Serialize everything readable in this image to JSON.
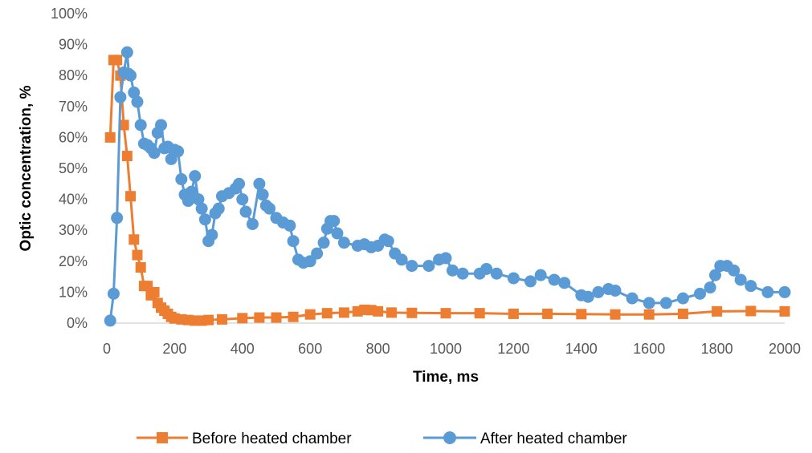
{
  "chart_data": {
    "type": "line",
    "xlabel": "Time, ms",
    "ylabel": "Optic concentration, %",
    "xlim": [
      0,
      2000
    ],
    "ylim": [
      0,
      100
    ],
    "x_ticks": [
      "0",
      "200",
      "400",
      "600",
      "800",
      "1000",
      "1200",
      "1400",
      "1600",
      "1800",
      "2000"
    ],
    "y_ticks": [
      "0%",
      "10%",
      "20%",
      "30%",
      "40%",
      "50%",
      "60%",
      "70%",
      "80%",
      "90%",
      "100%"
    ],
    "grid": false,
    "legend_position": "bottom",
    "series": [
      {
        "name": "Before heated chamber",
        "color": "#ED7D31",
        "marker": "square",
        "points": [
          [
            10,
            60
          ],
          [
            20,
            85
          ],
          [
            30,
            85
          ],
          [
            40,
            80
          ],
          [
            50,
            64
          ],
          [
            60,
            54
          ],
          [
            70,
            41
          ],
          [
            80,
            27
          ],
          [
            90,
            22
          ],
          [
            100,
            18
          ],
          [
            110,
            12
          ],
          [
            120,
            12
          ],
          [
            130,
            9
          ],
          [
            140,
            10
          ],
          [
            150,
            6.5
          ],
          [
            160,
            5
          ],
          [
            170,
            4
          ],
          [
            180,
            3
          ],
          [
            190,
            2
          ],
          [
            200,
            1.5
          ],
          [
            220,
            1.2
          ],
          [
            240,
            1.0
          ],
          [
            260,
            0.8
          ],
          [
            280,
            0.8
          ],
          [
            300,
            1.0
          ],
          [
            340,
            1.2
          ],
          [
            400,
            1.6
          ],
          [
            450,
            1.8
          ],
          [
            500,
            1.8
          ],
          [
            550,
            2.0
          ],
          [
            600,
            2.8
          ],
          [
            650,
            3.2
          ],
          [
            700,
            3.4
          ],
          [
            740,
            3.8
          ],
          [
            760,
            4.3
          ],
          [
            780,
            4.2
          ],
          [
            800,
            3.8
          ],
          [
            840,
            3.4
          ],
          [
            900,
            3.3
          ],
          [
            1000,
            3.2
          ],
          [
            1100,
            3.2
          ],
          [
            1200,
            3.0
          ],
          [
            1300,
            3.0
          ],
          [
            1400,
            2.9
          ],
          [
            1500,
            2.8
          ],
          [
            1600,
            2.8
          ],
          [
            1700,
            3.0
          ],
          [
            1800,
            3.8
          ],
          [
            1900,
            3.9
          ],
          [
            2000,
            3.8
          ]
        ]
      },
      {
        "name": "After heated chamber",
        "color": "#5B9BD5",
        "marker": "circle",
        "points": [
          [
            10,
            0.8
          ],
          [
            20,
            9.5
          ],
          [
            30,
            34
          ],
          [
            40,
            73
          ],
          [
            50,
            81
          ],
          [
            60,
            87.5
          ],
          [
            65,
            80.5
          ],
          [
            70,
            80
          ],
          [
            80,
            74.5
          ],
          [
            90,
            71.5
          ],
          [
            100,
            64
          ],
          [
            110,
            58
          ],
          [
            120,
            57.5
          ],
          [
            130,
            56.5
          ],
          [
            140,
            55
          ],
          [
            150,
            61.5
          ],
          [
            160,
            64
          ],
          [
            170,
            56.5
          ],
          [
            180,
            57
          ],
          [
            190,
            53
          ],
          [
            200,
            56
          ],
          [
            210,
            55.5
          ],
          [
            220,
            46.5
          ],
          [
            230,
            41.5
          ],
          [
            240,
            39.5
          ],
          [
            250,
            42.5
          ],
          [
            260,
            47.5
          ],
          [
            270,
            40
          ],
          [
            280,
            37
          ],
          [
            290,
            33.5
          ],
          [
            300,
            26.5
          ],
          [
            310,
            28.5
          ],
          [
            320,
            35.5
          ],
          [
            330,
            37
          ],
          [
            340,
            41
          ],
          [
            360,
            42
          ],
          [
            380,
            43.5
          ],
          [
            390,
            45
          ],
          [
            400,
            40
          ],
          [
            410,
            36
          ],
          [
            430,
            32
          ],
          [
            450,
            45
          ],
          [
            460,
            41.5
          ],
          [
            470,
            38
          ],
          [
            480,
            37
          ],
          [
            500,
            34
          ],
          [
            520,
            32.5
          ],
          [
            540,
            31.5
          ],
          [
            550,
            26.5
          ],
          [
            565,
            20.5
          ],
          [
            580,
            19.5
          ],
          [
            600,
            20
          ],
          [
            620,
            22.5
          ],
          [
            640,
            26
          ],
          [
            650,
            30.5
          ],
          [
            660,
            33
          ],
          [
            670,
            33
          ],
          [
            680,
            29
          ],
          [
            700,
            26
          ],
          [
            740,
            25
          ],
          [
            760,
            25.5
          ],
          [
            780,
            24.5
          ],
          [
            800,
            25
          ],
          [
            820,
            27
          ],
          [
            830,
            26.5
          ],
          [
            850,
            22.5
          ],
          [
            870,
            20.5
          ],
          [
            900,
            18.5
          ],
          [
            950,
            18.5
          ],
          [
            980,
            20.5
          ],
          [
            1000,
            21
          ],
          [
            1020,
            17
          ],
          [
            1050,
            16
          ],
          [
            1100,
            16
          ],
          [
            1120,
            17.5
          ],
          [
            1150,
            16
          ],
          [
            1200,
            14.5
          ],
          [
            1250,
            13.5
          ],
          [
            1280,
            15.5
          ],
          [
            1320,
            14
          ],
          [
            1350,
            13
          ],
          [
            1400,
            9
          ],
          [
            1420,
            8.5
          ],
          [
            1450,
            10
          ],
          [
            1480,
            11
          ],
          [
            1500,
            10.5
          ],
          [
            1550,
            8
          ],
          [
            1600,
            6.5
          ],
          [
            1650,
            6.5
          ],
          [
            1700,
            8
          ],
          [
            1750,
            9.5
          ],
          [
            1780,
            11.5
          ],
          [
            1795,
            15.5
          ],
          [
            1810,
            18.5
          ],
          [
            1830,
            18.5
          ],
          [
            1850,
            17
          ],
          [
            1870,
            14
          ],
          [
            1900,
            12
          ],
          [
            1950,
            10
          ],
          [
            2000,
            10
          ]
        ]
      }
    ]
  }
}
